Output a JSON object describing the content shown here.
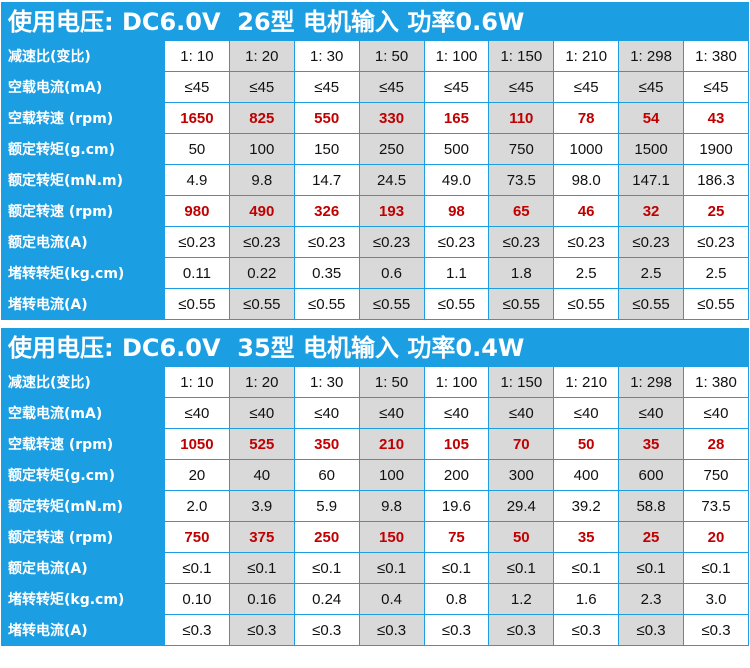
{
  "blocks": [
    {
      "title": "使用电压: DC6.0V  26型 电机输入 功率0.6W",
      "rows": [
        {
          "label": "减速比(变比)",
          "highlight": false,
          "values": [
            "1: 10",
            "1: 20",
            "1: 30",
            "1: 50",
            "1: 100",
            "1: 150",
            "1: 210",
            "1: 298",
            "1: 380"
          ]
        },
        {
          "label": "空载电流(mA)",
          "highlight": false,
          "values": [
            "≤45",
            "≤45",
            "≤45",
            "≤45",
            "≤45",
            "≤45",
            "≤45",
            "≤45",
            "≤45"
          ]
        },
        {
          "label": "空载转速 (rpm)",
          "highlight": true,
          "values": [
            "1650",
            "825",
            "550",
            "330",
            "165",
            "110",
            "78",
            "54",
            "43"
          ]
        },
        {
          "label": "额定转矩(g.cm)",
          "highlight": false,
          "values": [
            "50",
            "100",
            "150",
            "250",
            "500",
            "750",
            "1000",
            "1500",
            "1900"
          ]
        },
        {
          "label": "额定转矩(mN.m)",
          "highlight": false,
          "values": [
            "4.9",
            "9.8",
            "14.7",
            "24.5",
            "49.0",
            "73.5",
            "98.0",
            "147.1",
            "186.3"
          ]
        },
        {
          "label": "额定转速 (rpm)",
          "highlight": true,
          "values": [
            "980",
            "490",
            "326",
            "193",
            "98",
            "65",
            "46",
            "32",
            "25"
          ]
        },
        {
          "label": "额定电流(A)",
          "highlight": false,
          "values": [
            "≤0.23",
            "≤0.23",
            "≤0.23",
            "≤0.23",
            "≤0.23",
            "≤0.23",
            "≤0.23",
            "≤0.23",
            "≤0.23"
          ]
        },
        {
          "label": "堵转转矩(kg.cm)",
          "highlight": false,
          "values": [
            "0.11",
            "0.22",
            "0.35",
            "0.6",
            "1.1",
            "1.8",
            "2.5",
            "2.5",
            "2.5"
          ]
        },
        {
          "label": "堵转电流(A)",
          "highlight": false,
          "values": [
            "≤0.55",
            "≤0.55",
            "≤0.55",
            "≤0.55",
            "≤0.55",
            "≤0.55",
            "≤0.55",
            "≤0.55",
            "≤0.55"
          ]
        }
      ]
    },
    {
      "title": "使用电压: DC6.0V  35型 电机输入 功率0.4W",
      "rows": [
        {
          "label": "减速比(变比)",
          "highlight": false,
          "values": [
            "1: 10",
            "1: 20",
            "1: 30",
            "1: 50",
            "1: 100",
            "1: 150",
            "1: 210",
            "1: 298",
            "1: 380"
          ]
        },
        {
          "label": "空载电流(mA)",
          "highlight": false,
          "values": [
            "≤40",
            "≤40",
            "≤40",
            "≤40",
            "≤40",
            "≤40",
            "≤40",
            "≤40",
            "≤40"
          ]
        },
        {
          "label": "空载转速 (rpm)",
          "highlight": true,
          "values": [
            "1050",
            "525",
            "350",
            "210",
            "105",
            "70",
            "50",
            "35",
            "28"
          ]
        },
        {
          "label": "额定转矩(g.cm)",
          "highlight": false,
          "values": [
            "20",
            "40",
            "60",
            "100",
            "200",
            "300",
            "400",
            "600",
            "750"
          ]
        },
        {
          "label": "额定转矩(mN.m)",
          "highlight": false,
          "values": [
            "2.0",
            "3.9",
            "5.9",
            "9.8",
            "19.6",
            "29.4",
            "39.2",
            "58.8",
            "73.5"
          ]
        },
        {
          "label": "额定转速 (rpm)",
          "highlight": true,
          "values": [
            "750",
            "375",
            "250",
            "150",
            "75",
            "50",
            "35",
            "25",
            "20"
          ]
        },
        {
          "label": "额定电流(A)",
          "highlight": false,
          "values": [
            "≤0.1",
            "≤0.1",
            "≤0.1",
            "≤0.1",
            "≤0.1",
            "≤0.1",
            "≤0.1",
            "≤0.1",
            "≤0.1"
          ]
        },
        {
          "label": "堵转转矩(kg.cm)",
          "highlight": false,
          "values": [
            "0.10",
            "0.16",
            "0.24",
            "0.4",
            "0.8",
            "1.2",
            "1.6",
            "2.3",
            "3.0"
          ]
        },
        {
          "label": "堵转电流(A)",
          "highlight": false,
          "values": [
            "≤0.3",
            "≤0.3",
            "≤0.3",
            "≤0.3",
            "≤0.3",
            "≤0.3",
            "≤0.3",
            "≤0.3",
            "≤0.3"
          ]
        }
      ]
    }
  ],
  "colors": {
    "header_blue": "#1c9ee3",
    "alt_column_gray": "#d9d9d9",
    "highlight_red": "#c00000"
  }
}
